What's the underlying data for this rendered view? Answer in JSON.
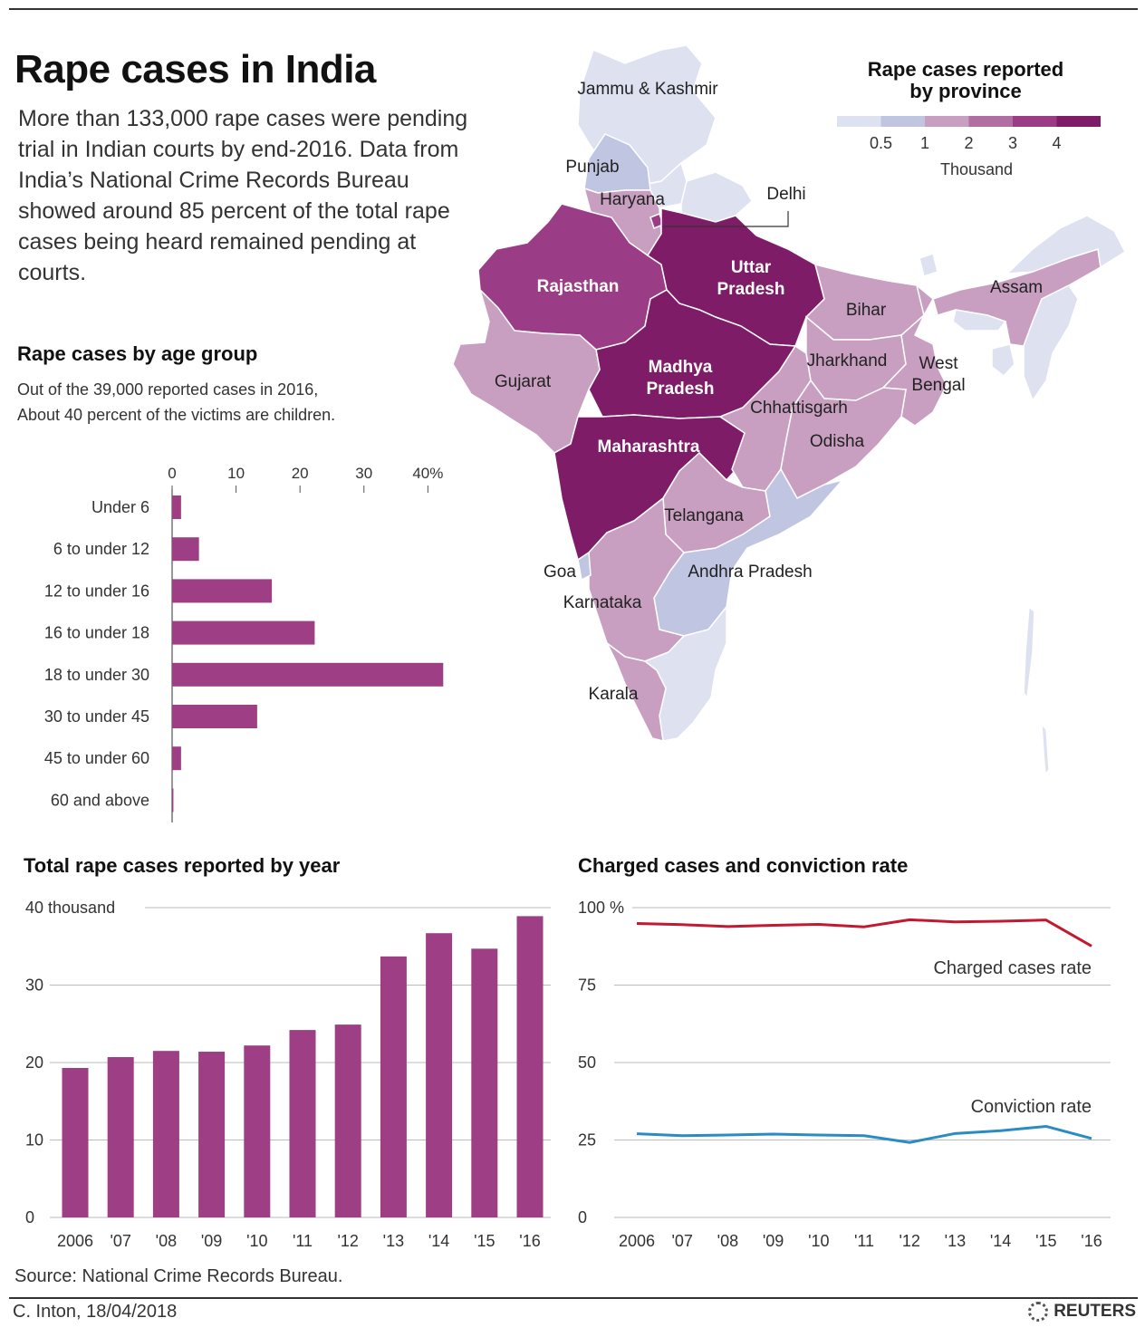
{
  "header": {
    "title": "Rape cases in India",
    "intro": "More than 133,000 rape cases were pending trial in Indian courts by end-2016. Data from India’s National Crime Records Bureau showed around 85 percent of the total rape cases being heard remained pending at courts."
  },
  "map": {
    "legend_title_1": "Rape cases reported",
    "legend_title_2": "by province",
    "legend_unit": "Thousand",
    "colors": [
      "#dde1f0",
      "#c0c6e2",
      "#c89fc0",
      "#b06ea2",
      "#9b3d86",
      "#7e1c68"
    ],
    "legend_ticks": [
      "0.5",
      "1",
      "2",
      "3",
      "4"
    ],
    "labels": [
      "Jammu & Kashmir",
      "Punjab",
      "Haryana",
      "Delhi",
      "Uttar",
      "Pradesh",
      "Rajasthan",
      "Bihar",
      "Assam",
      "Gujarat",
      "Madhya",
      "Pradesh",
      "Jharkhand",
      "West",
      "Bengal",
      "Chhattisgarh",
      "Odisha",
      "Maharashtra",
      "Telangana",
      "Goa",
      "Andhra Pradesh",
      "Karnataka",
      "Karala"
    ]
  },
  "chart_data": [
    {
      "type": "bar",
      "orientation": "horizontal",
      "title": "Rape cases by age group",
      "subtitle_1": "Out of the 39,000 reported cases in 2016,",
      "subtitle_2": "About 40 percent of the victims are children.",
      "categories": [
        "Under 6",
        "6 to under 12",
        "12 to under 16",
        "16 to under 18",
        "18 to under 30",
        "30 to under 45",
        "45 to under 60",
        "60 and above"
      ],
      "values": [
        1.4,
        4.2,
        15.6,
        22.3,
        42.4,
        13.3,
        1.4,
        0.2
      ],
      "xticks": [
        "0",
        "10",
        "20",
        "30",
        "40%"
      ],
      "xlim": [
        0,
        42.5
      ],
      "color": "#9e3e85"
    },
    {
      "type": "bar",
      "title": "Total rape cases reported by year",
      "categories": [
        "2006",
        "'07",
        "'08",
        "'09",
        "'10",
        "'11",
        "'12",
        "'13",
        "'14",
        "'15",
        "'16"
      ],
      "values": [
        19.3,
        20.7,
        21.5,
        21.4,
        22.2,
        24.2,
        24.9,
        33.7,
        36.7,
        34.7,
        38.9
      ],
      "yticks": [
        "40  thousand",
        "30",
        "20",
        "10",
        "0"
      ],
      "ylim": [
        0,
        40
      ],
      "ylabel": "thousand",
      "color": "#9e3e85"
    },
    {
      "type": "line",
      "title": "Charged cases and conviction rate",
      "categories": [
        "2006",
        "'07",
        "'08",
        "'09",
        "'10",
        "'11",
        "'12",
        "'13",
        "'14",
        "'15",
        "'16"
      ],
      "yticks": [
        "100 %",
        "75",
        "50",
        "25",
        "0"
      ],
      "ylim": [
        0,
        100
      ],
      "series": [
        {
          "name": "Charged cases rate",
          "color": "#c11a30",
          "values": [
            94.9,
            94.5,
            93.9,
            94.3,
            94.6,
            93.8,
            96.1,
            95.4,
            95.6,
            96.0,
            87.6
          ]
        },
        {
          "name": "Conviction rate",
          "color": "#2b8cc4",
          "values": [
            27.0,
            26.4,
            26.6,
            26.9,
            26.6,
            26.4,
            24.2,
            27.1,
            28.0,
            29.4,
            25.5
          ]
        }
      ]
    }
  ],
  "footer": {
    "source": "Source: National Crime Records Bureau.",
    "credit": "C. Inton,  18/04/2018",
    "brand": "REUTERS"
  }
}
